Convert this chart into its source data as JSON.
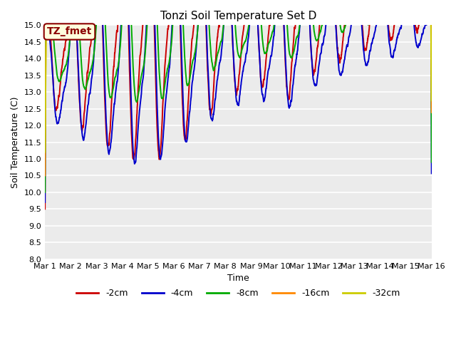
{
  "title": "Tonzi Soil Temperature Set D",
  "xlabel": "Time",
  "ylabel": "Soil Temperature (C)",
  "ylim": [
    8.0,
    15.0
  ],
  "yticks": [
    8.0,
    8.5,
    9.0,
    9.5,
    10.0,
    10.5,
    11.0,
    11.5,
    12.0,
    12.5,
    13.0,
    13.5,
    14.0,
    14.5,
    15.0
  ],
  "xtick_labels": [
    "Mar 1",
    "Mar 2",
    "Mar 3",
    "Mar 4",
    "Mar 5",
    "Mar 6",
    "Mar 7",
    "Mar 8",
    "Mar 9",
    "Mar 10",
    "Mar 11",
    "Mar 12",
    "Mar 13",
    "Mar 14",
    "Mar 15",
    "Mar 16"
  ],
  "colors": {
    "-2cm": "#cc0000",
    "-4cm": "#0000cc",
    "-8cm": "#00aa00",
    "-16cm": "#ff8800",
    "-32cm": "#cccc00"
  },
  "legend_labels": [
    "-2cm",
    "-4cm",
    "-8cm",
    "-16cm",
    "-32cm"
  ],
  "annotation_text": "TZ_fmet",
  "annotation_color": "#8b0000",
  "annotation_bg": "#ffffdd",
  "plot_bg_color": "#ebebeb",
  "fig_bg_color": "#ffffff",
  "title_fontsize": 11,
  "axis_fontsize": 9,
  "tick_fontsize": 8,
  "legend_fontsize": 9,
  "line_width": 1.4
}
